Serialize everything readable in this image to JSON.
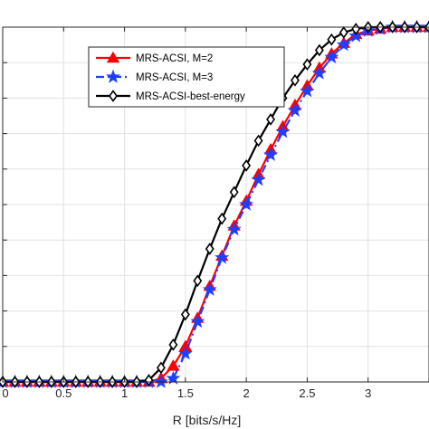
{
  "chart_data": {
    "type": "line",
    "xlabel": "R [bits/s/Hz]",
    "ylabel": "",
    "xlim": [
      0,
      3.5
    ],
    "ylim": [
      0,
      1
    ],
    "grid": true,
    "legend_position": "top-center",
    "xticks": [
      0,
      0.5,
      1,
      1.5,
      2,
      2.5,
      3
    ],
    "xtick_labels": [
      "0",
      "0.5",
      "1",
      "1.5",
      "2",
      "2.5",
      "3"
    ],
    "yticks": [
      0,
      0.1,
      0.2,
      0.3,
      0.4,
      0.5,
      0.6,
      0.7,
      0.8,
      0.9,
      1.0
    ],
    "x": [
      0,
      0.1,
      0.2,
      0.3,
      0.4,
      0.5,
      0.6,
      0.7,
      0.8,
      0.9,
      1.0,
      1.1,
      1.2,
      1.3,
      1.4,
      1.5,
      1.6,
      1.7,
      1.8,
      1.9,
      2.0,
      2.1,
      2.2,
      2.3,
      2.4,
      2.5,
      2.6,
      2.7,
      2.8,
      2.9,
      3.0,
      3.1,
      3.2,
      3.3,
      3.4,
      3.5
    ],
    "series": [
      {
        "name": "MRS-ACSI, M=2",
        "color": "#ff0000",
        "marker": "triangle",
        "line_style": "solid",
        "values": [
          0,
          0,
          0,
          0,
          0,
          0,
          0,
          0,
          0,
          0,
          0,
          0,
          0,
          0.01,
          0.045,
          0.1,
          0.18,
          0.27,
          0.355,
          0.44,
          0.51,
          0.585,
          0.655,
          0.72,
          0.78,
          0.835,
          0.885,
          0.925,
          0.955,
          0.98,
          0.99,
          0.995,
          1.0,
          1.0,
          1.0,
          1.0
        ]
      },
      {
        "name": "MRS-ACSI, M=3",
        "color": "#1f3fff",
        "marker": "star",
        "line_style": "dashdot",
        "values": [
          0,
          0,
          0,
          0,
          0,
          0,
          0,
          0,
          0,
          0,
          0,
          0,
          0,
          0,
          0.01,
          0.08,
          0.17,
          0.26,
          0.35,
          0.43,
          0.5,
          0.57,
          0.64,
          0.705,
          0.765,
          0.82,
          0.87,
          0.915,
          0.95,
          0.975,
          0.99,
          0.995,
          1.0,
          1.0,
          1.0,
          1.0
        ]
      },
      {
        "name": "MRS-ACSI-best-energy",
        "color": "#000000",
        "marker": "diamond",
        "line_style": "solid",
        "values": [
          0,
          0,
          0,
          0,
          0,
          0,
          0,
          0,
          0,
          0,
          0,
          0,
          0.005,
          0.04,
          0.105,
          0.19,
          0.285,
          0.375,
          0.46,
          0.535,
          0.61,
          0.68,
          0.74,
          0.8,
          0.85,
          0.895,
          0.935,
          0.965,
          0.985,
          0.995,
          1.0,
          1.0,
          1.0,
          1.0,
          1.0,
          1.0
        ]
      }
    ]
  }
}
